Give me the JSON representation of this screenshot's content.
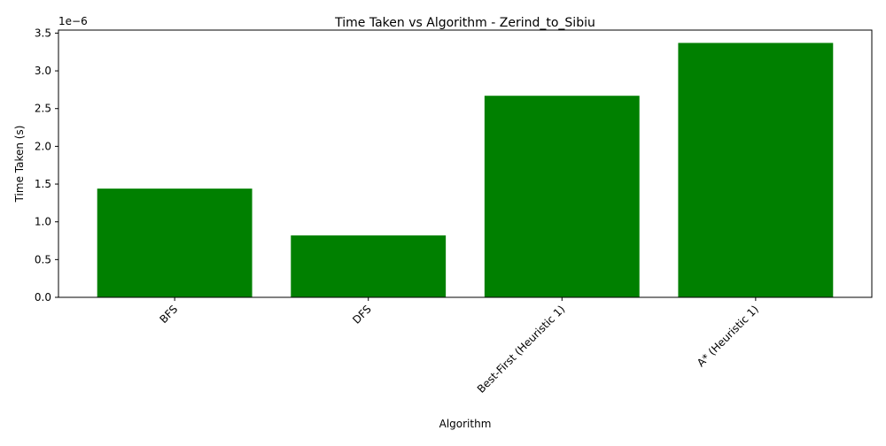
{
  "chart_data": {
    "type": "bar",
    "title": "Time Taken vs Algorithm - Zerind_to_Sibiu",
    "xlabel": "Algorithm",
    "ylabel": "Time Taken (s)",
    "offset_label": "1e−6",
    "categories": [
      "BFS",
      "DFS",
      "Best-First (Heuristic 1)",
      "A* (Heuristic 1)"
    ],
    "values": [
      1.44e-06,
      8.2e-07,
      2.67e-06,
      3.37e-06
    ],
    "ylim": [
      0,
      3.54e-06
    ],
    "yticks": [
      0,
      5e-07,
      1e-06,
      1.5e-06,
      2e-06,
      2.5e-06,
      3e-06,
      3.5e-06
    ],
    "ytick_labels": [
      "0.0",
      "0.5",
      "1.0",
      "1.5",
      "2.0",
      "2.5",
      "3.0",
      "3.5"
    ],
    "bar_color": "#008000",
    "grid": false,
    "legend": "none"
  }
}
